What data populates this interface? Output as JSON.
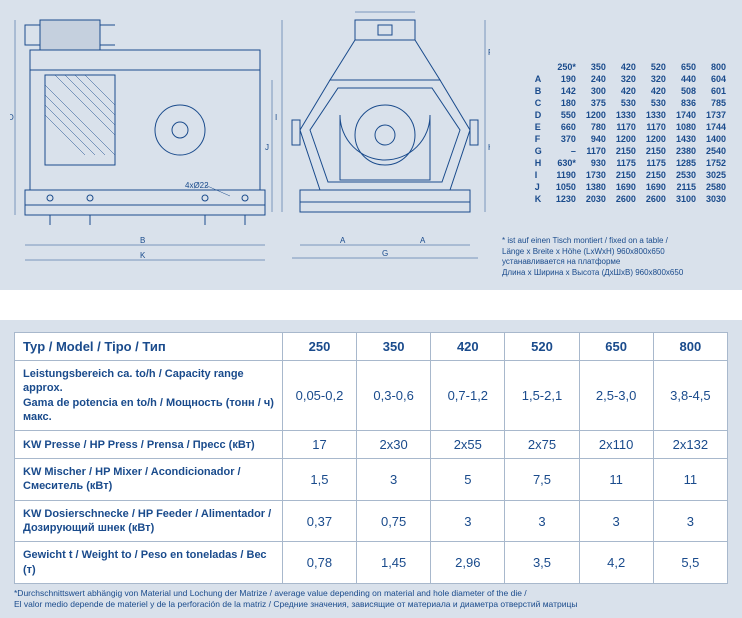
{
  "diagram": {
    "type": "technical-drawing",
    "annotation": "4xØ22",
    "dim_labels": [
      "A",
      "B",
      "C",
      "D",
      "E",
      "F",
      "G",
      "H",
      "I",
      "J",
      "K"
    ],
    "colors": {
      "stroke": "#1a4b8c",
      "panel_bg": "#d9e1eb",
      "fill": "#c5d0de"
    }
  },
  "dimensions_table": {
    "headers": [
      "",
      "250*",
      "350",
      "420",
      "520",
      "650",
      "800"
    ],
    "rows": [
      [
        "A",
        190,
        240,
        320,
        320,
        440,
        604
      ],
      [
        "B",
        142,
        300,
        420,
        420,
        508,
        601
      ],
      [
        "C",
        180,
        375,
        530,
        530,
        836,
        785
      ],
      [
        "D",
        550,
        1200,
        1330,
        1330,
        1740,
        1737
      ],
      [
        "E",
        660,
        780,
        1170,
        1170,
        1080,
        1744
      ],
      [
        "F",
        370,
        940,
        1200,
        1200,
        1430,
        1400
      ],
      [
        "G",
        "–",
        1170,
        2150,
        2150,
        2380,
        2540
      ],
      [
        "H",
        "630*",
        930,
        1175,
        1175,
        1285,
        1752
      ],
      [
        "I",
        1190,
        1730,
        2150,
        2150,
        2530,
        3025
      ],
      [
        "J",
        1050,
        1380,
        1690,
        1690,
        2115,
        2580
      ],
      [
        "K",
        1230,
        2030,
        2600,
        2600,
        3100,
        3030
      ]
    ],
    "footnote": [
      "* ist auf einen Tisch montiert / fixed on a table /",
      "Länge x Breite x Höhe (LxWxH) 960x800x650",
      "устанавливается на платформе",
      "Длина x Ширина x Высота (ДxШxВ) 960x800x650"
    ]
  },
  "spec_table": {
    "columns": [
      "Typ / Model / Tipo / Тип",
      "250",
      "350",
      "420",
      "520",
      "650",
      "800"
    ],
    "rows": [
      {
        "label": "Leistungsbereich ca. to/h / Capacity range approx.<br>Gama de potencia en to/h / Мощность (тонн / ч) макс.",
        "values": [
          "0,05-0,2",
          "0,3-0,6",
          "0,7-1,2",
          "1,5-2,1",
          "2,5-3,0",
          "3,8-4,5"
        ]
      },
      {
        "label": "KW Presse / HP Press / Prensa / Пресс (кВт)",
        "values": [
          "17",
          "2x30",
          "2x55",
          "2x75",
          "2x110",
          "2x132"
        ]
      },
      {
        "label": "KW Mischer / HP Mixer / Acondicionador /<br>Смеситель (кВт)",
        "values": [
          "1,5",
          "3",
          "5",
          "7,5",
          "11",
          "11"
        ]
      },
      {
        "label": "KW Dosierschnecke / HP Feeder / Alimentador /<br>Дозирующий шнек (кВт)",
        "values": [
          "0,37",
          "0,75",
          "3",
          "3",
          "3",
          "3"
        ]
      },
      {
        "label": "Gewicht t / Weight to / Peso en toneladas / Вес (т)",
        "values": [
          "0,78",
          "1,45",
          "2,96",
          "3,5",
          "4,2",
          "5,5"
        ]
      }
    ],
    "footnote": "*Durchschnittswert abhängig von Material und Lochung der Matrize / average value depending on material and hole diameter of the die /<br>El valor medio depende de materiel y de la perforación de la matriz / Средние значения, зависящие от материала и диаметра отверстий матрицы"
  }
}
